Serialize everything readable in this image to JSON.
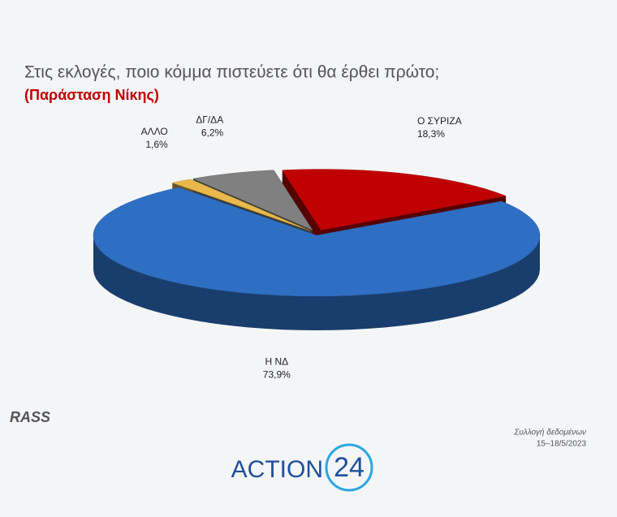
{
  "chart_data": {
    "type": "pie",
    "title": "Στις εκλογές, ποιο κόμμα πιστεύετε ότι θα έρθει πρώτο;",
    "subtitle": "(Παράσταση Νίκης)",
    "categories": [
      "Ο ΣΥΡΙΖΑ",
      "Η ΝΔ",
      "ΑΛΛΟ",
      "ΔΓ/ΔΑ"
    ],
    "values": [
      18.3,
      73.9,
      1.6,
      6.2
    ],
    "value_labels": [
      "18,3%",
      "73,9%",
      "1,6%",
      "6,2%"
    ],
    "colors": [
      "#c00000",
      "#2e6fc4",
      "#e8b94a",
      "#808080"
    ]
  },
  "footer": {
    "source_logo": "RASS",
    "note": "Συλλογή δεδομένων",
    "dates": "15–18/5/2023",
    "brand": "ACTION",
    "brand_number": "24"
  }
}
